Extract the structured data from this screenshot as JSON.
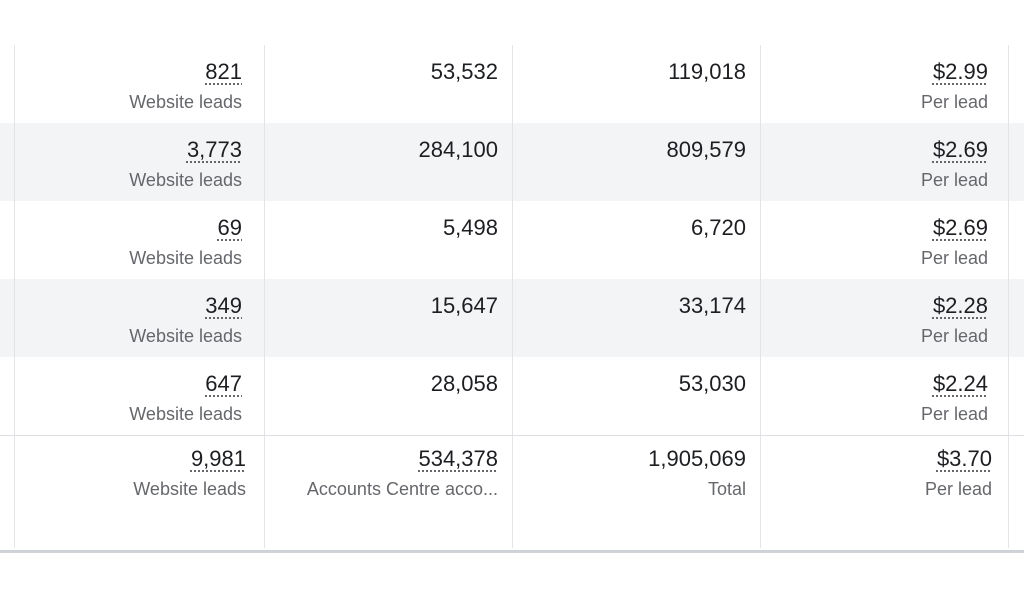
{
  "rows": [
    {
      "results": "821",
      "result_type": "Website leads",
      "reach": "53,532",
      "impressions": "119,018",
      "cost": "$2.99",
      "cost_label": "Per lead"
    },
    {
      "results": "3,773",
      "result_type": "Website leads",
      "reach": "284,100",
      "impressions": "809,579",
      "cost": "$2.69",
      "cost_label": "Per lead"
    },
    {
      "results": "69",
      "result_type": "Website leads",
      "reach": "5,498",
      "impressions": "6,720",
      "cost": "$2.69",
      "cost_label": "Per lead"
    },
    {
      "results": "349",
      "result_type": "Website leads",
      "reach": "15,647",
      "impressions": "33,174",
      "cost": "$2.28",
      "cost_label": "Per lead"
    },
    {
      "results": "647",
      "result_type": "Website leads",
      "reach": "28,058",
      "impressions": "53,030",
      "cost": "$2.24",
      "cost_label": "Per lead"
    }
  ],
  "totals": {
    "results": "9,981",
    "result_type": "Website leads",
    "reach": "534,378",
    "reach_label": "Accounts Centre acco...",
    "impressions": "1,905,069",
    "impressions_label": "Total",
    "cost": "$3.70",
    "cost_label": "Per lead"
  }
}
